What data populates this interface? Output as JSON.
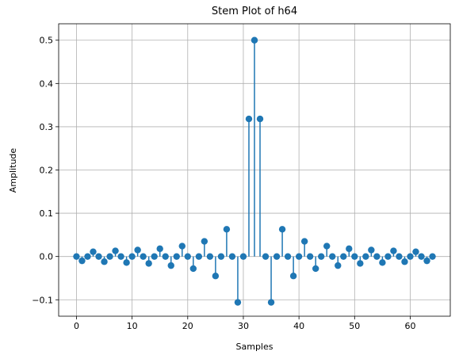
{
  "chart_data": {
    "type": "stem",
    "title": "Stem Plot of h64",
    "xlabel": "Samples",
    "ylabel": "Amplitude",
    "xlim": [
      -3.2,
      67.2
    ],
    "ylim": [
      -0.138,
      0.538
    ],
    "xticks": [
      0,
      10,
      20,
      30,
      40,
      50,
      60
    ],
    "xtick_labels": [
      "0",
      "10",
      "20",
      "30",
      "40",
      "50",
      "60"
    ],
    "yticks": [
      -0.1,
      0.0,
      0.1,
      0.2,
      0.3,
      0.4,
      0.5
    ],
    "ytick_labels": [
      "−0.1",
      "0.0",
      "0.1",
      "0.2",
      "0.3",
      "0.4",
      "0.5"
    ],
    "grid": true,
    "colors": {
      "stem": "#1f77b4",
      "marker": "#1f77b4",
      "grid": "#b0b0b0"
    },
    "x": [
      0,
      1,
      2,
      3,
      4,
      5,
      6,
      7,
      8,
      9,
      10,
      11,
      12,
      13,
      14,
      15,
      16,
      17,
      18,
      19,
      20,
      21,
      22,
      23,
      24,
      25,
      26,
      27,
      28,
      29,
      30,
      31,
      32,
      33,
      34,
      35,
      36,
      37,
      38,
      39,
      40,
      41,
      42,
      43,
      44,
      45,
      46,
      47,
      48,
      49,
      50,
      51,
      52,
      53,
      54,
      55,
      56,
      57,
      58,
      59,
      60,
      61,
      62,
      63,
      64
    ],
    "values": [
      0.0,
      -0.01,
      0.0,
      0.011,
      0.0,
      -0.012,
      0.0,
      0.013,
      0.0,
      -0.014,
      0.0,
      0.015,
      0.0,
      -0.016,
      0.0,
      0.018,
      0.0,
      -0.021,
      0.0,
      0.024,
      0.0,
      -0.028,
      0.0,
      0.035,
      0.0,
      -0.045,
      0.0,
      0.063,
      0.0,
      -0.106,
      0.0,
      0.318,
      0.5,
      0.318,
      0.0,
      -0.106,
      0.0,
      0.063,
      0.0,
      -0.045,
      0.0,
      0.035,
      0.0,
      -0.028,
      0.0,
      0.024,
      0.0,
      -0.021,
      0.0,
      0.018,
      0.0,
      -0.016,
      0.0,
      0.015,
      0.0,
      -0.014,
      0.0,
      0.013,
      0.0,
      -0.012,
      0.0,
      0.011,
      0.0,
      -0.01,
      0.0
    ]
  }
}
